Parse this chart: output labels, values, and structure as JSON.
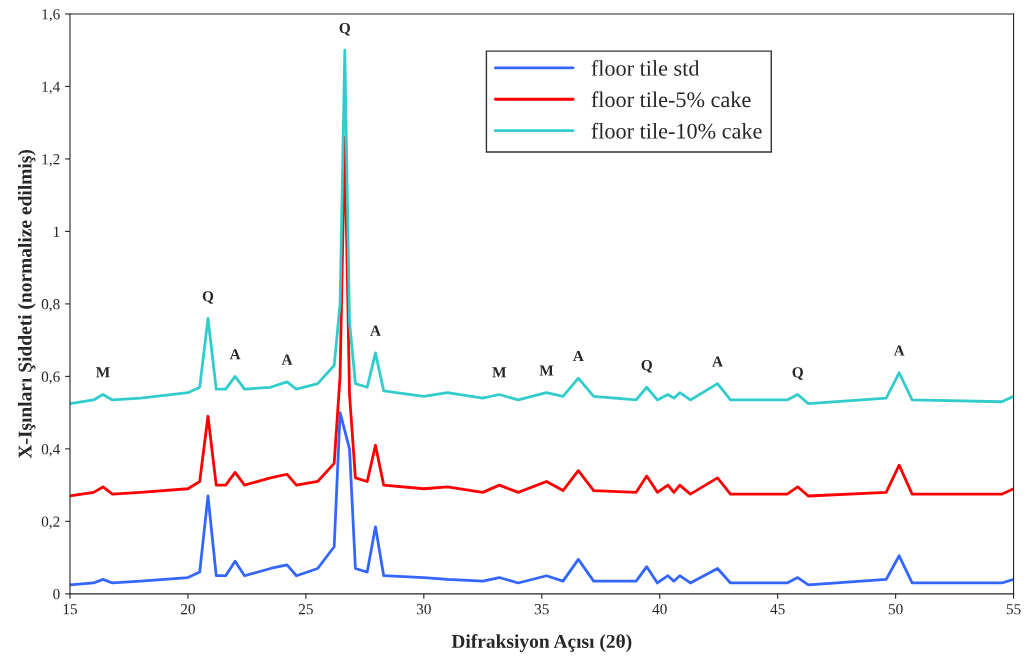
{
  "chart_data": {
    "type": "line",
    "xlabel": "Difraksiyon Açısı (2θ)",
    "ylabel": "X-Işınları Şiddeti (normalize edilmiş)",
    "x": [
      15,
      16.0,
      16.4,
      16.8,
      18,
      20,
      20.5,
      20.85,
      21.2,
      21.6,
      22.0,
      22.4,
      23.5,
      24.2,
      24.6,
      25.5,
      26.2,
      26.45,
      26.65,
      26.85,
      27.1,
      27.6,
      27.95,
      28.3,
      30,
      31,
      32.5,
      33.2,
      34,
      35.2,
      35.9,
      36.55,
      37.2,
      39,
      39.45,
      39.9,
      40.35,
      40.6,
      40.85,
      41.3,
      42.45,
      43.0,
      45.4,
      45.85,
      46.3,
      49.6,
      50.15,
      50.7,
      54.5,
      55
    ],
    "series": [
      {
        "name": "floor tile std",
        "color": "#3366ff",
        "values": [
          0.025,
          0.03,
          0.04,
          0.03,
          0.035,
          0.045,
          0.06,
          0.27,
          0.05,
          0.05,
          0.09,
          0.05,
          0.07,
          0.08,
          0.05,
          0.07,
          0.13,
          0.5,
          null,
          0.4,
          0.07,
          0.06,
          0.185,
          0.05,
          0.045,
          0.04,
          0.035,
          0.045,
          0.03,
          0.05,
          0.035,
          0.095,
          0.035,
          0.035,
          0.075,
          0.03,
          0.05,
          0.035,
          0.05,
          0.03,
          0.07,
          0.03,
          0.03,
          0.045,
          0.025,
          0.04,
          0.105,
          0.03,
          0.03,
          0.04
        ]
      },
      {
        "name": "floor tile-5% cake",
        "color": "#ff0000",
        "values": [
          0.27,
          0.28,
          0.295,
          0.275,
          0.28,
          0.29,
          0.31,
          0.49,
          0.3,
          0.3,
          0.335,
          0.3,
          0.32,
          0.33,
          0.3,
          0.31,
          0.36,
          0.6,
          1.26,
          0.55,
          0.32,
          0.31,
          0.41,
          0.3,
          0.29,
          0.295,
          0.28,
          0.3,
          0.28,
          0.31,
          0.285,
          0.34,
          0.285,
          0.28,
          0.325,
          0.28,
          0.3,
          0.28,
          0.3,
          0.275,
          0.32,
          0.275,
          0.275,
          0.295,
          0.27,
          0.28,
          0.355,
          0.275,
          0.275,
          0.29
        ]
      },
      {
        "name": "floor tile-10% cake",
        "color": "#33cccc",
        "values": [
          0.525,
          0.535,
          0.55,
          0.535,
          0.54,
          0.555,
          0.57,
          0.76,
          0.565,
          0.565,
          0.6,
          0.565,
          0.57,
          0.585,
          0.565,
          0.58,
          0.63,
          0.8,
          1.5,
          0.75,
          0.58,
          0.57,
          0.665,
          0.56,
          0.545,
          0.555,
          0.54,
          0.55,
          0.535,
          0.555,
          0.545,
          0.595,
          0.545,
          0.535,
          0.57,
          0.535,
          0.55,
          0.54,
          0.555,
          0.535,
          0.58,
          0.535,
          0.535,
          0.55,
          0.525,
          0.54,
          0.61,
          0.535,
          0.53,
          0.545
        ]
      }
    ],
    "annotations": [
      {
        "text": "M",
        "x": 16.4,
        "y": 0.55
      },
      {
        "text": "Q",
        "x": 20.85,
        "y": 0.76
      },
      {
        "text": "A",
        "x": 22.0,
        "y": 0.6
      },
      {
        "text": "A",
        "x": 24.2,
        "y": 0.585
      },
      {
        "text": "Q",
        "x": 26.65,
        "y": 1.5
      },
      {
        "text": "A",
        "x": 27.95,
        "y": 0.665
      },
      {
        "text": "M",
        "x": 33.2,
        "y": 0.55
      },
      {
        "text": "M",
        "x": 35.2,
        "y": 0.555
      },
      {
        "text": "A",
        "x": 36.55,
        "y": 0.595
      },
      {
        "text": "Q",
        "x": 39.45,
        "y": 0.57
      },
      {
        "text": "A",
        "x": 42.45,
        "y": 0.58
      },
      {
        "text": "Q",
        "x": 45.85,
        "y": 0.55
      },
      {
        "text": "A",
        "x": 50.15,
        "y": 0.61
      }
    ],
    "xlim": [
      15,
      55
    ],
    "xticks": [
      15,
      20,
      25,
      30,
      35,
      40,
      45,
      50,
      55
    ],
    "ylim": [
      0,
      1.6
    ],
    "yticks": [
      0,
      {
        "value": 0.2,
        "label": "0,2"
      },
      {
        "value": 0.4,
        "label": "0,4"
      },
      {
        "value": 0.6,
        "label": "0,6"
      },
      {
        "value": 0.8,
        "label": "0,8"
      },
      1,
      {
        "value": 1.2,
        "label": "1,2"
      },
      {
        "value": 1.4,
        "label": "1,4"
      },
      {
        "value": 1.6,
        "label": "1,6"
      }
    ],
    "legend": "top right",
    "grid": false,
    "marker": "none",
    "line_style": "solid"
  }
}
